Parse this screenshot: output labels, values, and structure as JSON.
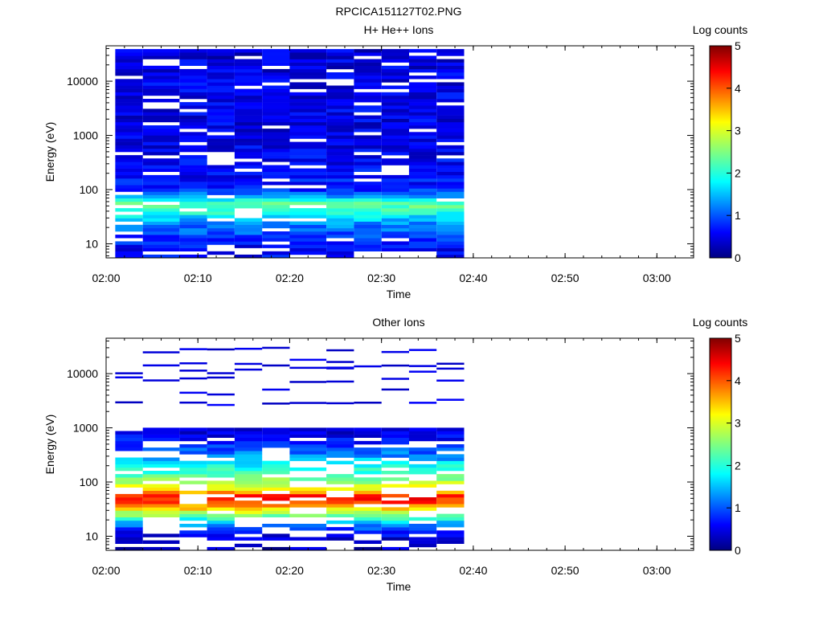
{
  "page": {
    "title": "RPCICA151127T02.PNG"
  },
  "colorbar": {
    "label": "Log counts",
    "ticks": [
      "0",
      "1",
      "2",
      "3",
      "4",
      "5"
    ],
    "range": [
      0,
      5
    ]
  },
  "chart_data": [
    {
      "type": "heatmap",
      "title": "H+ He++ Ions",
      "xlabel": "Time",
      "ylabel": "Energy (eV)",
      "yscale": "log",
      "ylim": [
        5.5,
        45000
      ],
      "xlim": [
        "02:00",
        "03:04"
      ],
      "xticks": [
        "02:00",
        "02:10",
        "02:20",
        "02:30",
        "02:40",
        "02:50",
        "03:00"
      ],
      "yticks": [
        "10",
        "100",
        "1000",
        "10000"
      ],
      "colorbar_label": "Log counts",
      "time_start": [
        "02:01",
        "02:04",
        "02:08",
        "02:11",
        "02:14",
        "02:17",
        "02:20",
        "02:24",
        "02:27",
        "02:30",
        "02:33",
        "02:36"
      ],
      "time_end": "02:39",
      "profile": [
        {
          "e": 9,
          "v": 0.6
        },
        {
          "e": 14,
          "v": 0.9
        },
        {
          "e": 20,
          "v": 1.1
        },
        {
          "e": 28,
          "v": 1.5
        },
        {
          "e": 40,
          "v": 2.1
        },
        {
          "e": 55,
          "v": 2.4
        },
        {
          "e": 75,
          "v": 1.3
        },
        {
          "e": 100,
          "v": 0.8
        },
        {
          "e": 200,
          "v": 0.6
        },
        {
          "e": 1000,
          "v": 0.5
        },
        {
          "e": 10000,
          "v": 0.5
        },
        {
          "e": 40000,
          "v": 0.4
        }
      ],
      "fill_top_energy": 40000,
      "gap_fraction": 0.12
    },
    {
      "type": "heatmap",
      "title": "Other Ions",
      "xlabel": "Time",
      "ylabel": "Energy (eV)",
      "yscale": "log",
      "ylim": [
        5.5,
        45000
      ],
      "xlim": [
        "02:00",
        "03:04"
      ],
      "xticks": [
        "02:00",
        "02:10",
        "02:20",
        "02:30",
        "02:40",
        "02:50",
        "03:00"
      ],
      "yticks": [
        "10",
        "100",
        "1000",
        "10000"
      ],
      "colorbar_label": "Log counts",
      "time_start": [
        "02:01",
        "02:04",
        "02:08",
        "02:11",
        "02:14",
        "02:17",
        "02:20",
        "02:24",
        "02:27",
        "02:30",
        "02:33",
        "02:36"
      ],
      "time_end": "02:39",
      "profile": [
        {
          "e": 8,
          "v": 0.3
        },
        {
          "e": 12,
          "v": 0.6
        },
        {
          "e": 18,
          "v": 1.5
        },
        {
          "e": 25,
          "v": 2.6
        },
        {
          "e": 35,
          "v": 3.6
        },
        {
          "e": 45,
          "v": 4.3
        },
        {
          "e": 55,
          "v": 4.2
        },
        {
          "e": 70,
          "v": 3.4
        },
        {
          "e": 90,
          "v": 2.9
        },
        {
          "e": 130,
          "v": 2.3
        },
        {
          "e": 200,
          "v": 1.8
        },
        {
          "e": 350,
          "v": 1.1
        },
        {
          "e": 600,
          "v": 0.6
        },
        {
          "e": 1000,
          "v": 0.3
        },
        {
          "e": 20000,
          "v": 0.3
        }
      ],
      "fill_top_energy": 1000,
      "sparse_lines_energy": [
        3000,
        5000,
        8000,
        12000,
        15000,
        18000,
        30000
      ],
      "gap_fraction": 0.25
    }
  ]
}
